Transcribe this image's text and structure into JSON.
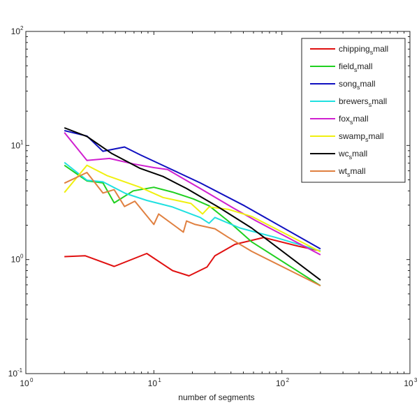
{
  "chart_data": {
    "type": "line",
    "title": "",
    "xlabel": "number of segments",
    "ylabel": "",
    "xscale": "log",
    "yscale": "log",
    "xlim": [
      1,
      1000
    ],
    "ylim": [
      0.1,
      100
    ],
    "xticks": [
      {
        "base": "10",
        "exp": "0"
      },
      {
        "base": "10",
        "exp": "1"
      },
      {
        "base": "10",
        "exp": "2"
      },
      {
        "base": "10",
        "exp": "3"
      }
    ],
    "yticks": [
      {
        "base": "10",
        "exp": "-1"
      },
      {
        "base": "10",
        "exp": "0"
      },
      {
        "base": "10",
        "exp": "1"
      },
      {
        "base": "10",
        "exp": "2"
      }
    ],
    "grid": false,
    "legend_position": "top-right",
    "series": [
      {
        "name": "chipping_small",
        "color": "#e01010",
        "x": [
          2,
          2.9,
          4.9,
          8.8,
          14,
          18.8,
          26,
          30,
          43,
          72,
          134,
          200
        ],
        "y": [
          1.06,
          1.08,
          0.87,
          1.13,
          0.8,
          0.72,
          0.86,
          1.08,
          1.36,
          1.56,
          1.31,
          1.19
        ]
      },
      {
        "name": "field_small",
        "color": "#20d020",
        "x": [
          2,
          3,
          4,
          4.9,
          6.9,
          10,
          14,
          20.4,
          27,
          38,
          58,
          200
        ],
        "y": [
          6.7,
          4.89,
          4.7,
          3.14,
          4.0,
          4.3,
          3.9,
          3.4,
          2.96,
          2.18,
          1.43,
          0.59
        ]
      },
      {
        "name": "song_small",
        "color": "#1010c0",
        "x": [
          2,
          3,
          4,
          5.9,
          7.8,
          12.8,
          23,
          51,
          200
        ],
        "y": [
          13.5,
          12.1,
          8.9,
          9.7,
          8.3,
          6.4,
          4.7,
          2.96,
          1.24
        ]
      },
      {
        "name": "brewers_small",
        "color": "#20e0e0",
        "x": [
          2,
          3,
          4,
          6,
          8.8,
          14,
          23,
          27,
          30,
          47,
          88,
          200
        ],
        "y": [
          7.1,
          4.96,
          4.8,
          3.8,
          3.3,
          2.89,
          2.34,
          2.08,
          2.34,
          1.89,
          1.57,
          1.19
        ]
      },
      {
        "name": "fox_small",
        "color": "#d020d0",
        "x": [
          2,
          3,
          4.5,
          6.9,
          10,
          12.8,
          23,
          41.5,
          63,
          200
        ],
        "y": [
          13.0,
          7.4,
          7.7,
          6.9,
          6.4,
          6.15,
          4.2,
          2.84,
          2.18,
          1.1
        ]
      },
      {
        "name": "swamp_small",
        "color": "#f0f010",
        "x": [
          2,
          3,
          4.3,
          7.8,
          11.8,
          19.5,
          24,
          27,
          38,
          58,
          200
        ],
        "y": [
          3.87,
          6.7,
          5.45,
          4.3,
          3.5,
          3.1,
          2.51,
          2.89,
          2.76,
          2.39,
          1.17
        ]
      },
      {
        "name": "wc_small",
        "color": "#000000",
        "x": [
          2,
          3,
          4.7,
          7.8,
          11.8,
          18,
          32,
          58,
          200
        ],
        "y": [
          14.3,
          12.0,
          8.5,
          6.3,
          5.35,
          4.2,
          2.88,
          1.89,
          0.66
        ]
      },
      {
        "name": "wt_small",
        "color": "#e08040",
        "x": [
          2,
          3,
          4,
          4.9,
          5.9,
          7.1,
          10,
          10.9,
          17,
          18,
          21,
          30,
          38,
          58,
          200
        ],
        "y": [
          4.67,
          5.8,
          3.83,
          4.1,
          2.92,
          3.25,
          2.03,
          2.51,
          1.74,
          2.18,
          2.03,
          1.86,
          1.57,
          1.18,
          0.59
        ]
      }
    ]
  }
}
